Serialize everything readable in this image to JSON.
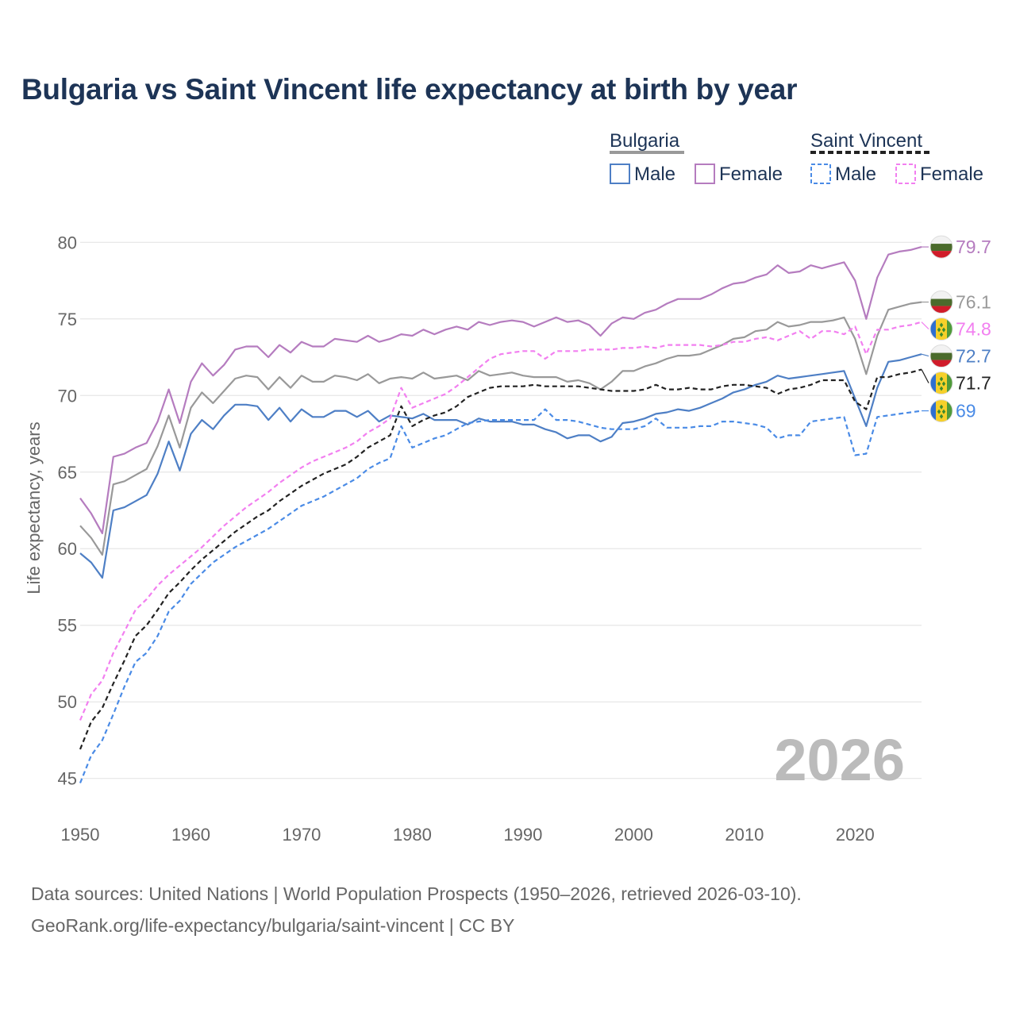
{
  "title": "Bulgaria vs Saint Vincent life expectancy at birth by year",
  "watermark_year": "2026",
  "footer": {
    "line1": "Data sources: United Nations | World Population Prospects (1950–2026, retrieved 2026-03-10).",
    "line2": "GeoRank.org/life-expectancy/bulgaria/saint-vincent | CC BY"
  },
  "legend": {
    "groups": [
      {
        "name": "Bulgaria",
        "items": [
          "Male",
          "Female"
        ]
      },
      {
        "name": "Saint Vincent",
        "items": [
          "Male",
          "Female"
        ]
      }
    ]
  },
  "colors": {
    "bg_male": "#4e7fc5",
    "bg_female": "#b57cbf",
    "bg_total": "#999999",
    "sv_male": "#4a8be6",
    "sv_female": "#f27ff0",
    "sv_total": "#222222",
    "grid": "#e6e6e6",
    "title": "#1d3456"
  },
  "chart_data": {
    "type": "line",
    "title": "Bulgaria vs Saint Vincent life expectancy at birth by year",
    "xlabel": "",
    "ylabel": "Life expectancy, years",
    "xlim": [
      1950,
      2026
    ],
    "ylim": [
      44,
      81
    ],
    "x_ticks": [
      1950,
      1960,
      1970,
      1980,
      1990,
      2000,
      2010,
      2020
    ],
    "y_ticks": [
      45,
      50,
      55,
      60,
      65,
      70,
      75,
      80
    ],
    "grid": true,
    "x": [
      1950,
      1951,
      1952,
      1953,
      1954,
      1955,
      1956,
      1957,
      1958,
      1959,
      1960,
      1961,
      1962,
      1963,
      1964,
      1965,
      1966,
      1967,
      1968,
      1969,
      1970,
      1971,
      1972,
      1973,
      1974,
      1975,
      1976,
      1977,
      1978,
      1979,
      1980,
      1981,
      1982,
      1983,
      1984,
      1985,
      1986,
      1987,
      1988,
      1989,
      1990,
      1991,
      1992,
      1993,
      1994,
      1995,
      1996,
      1997,
      1998,
      1999,
      2000,
      2001,
      2002,
      2003,
      2004,
      2005,
      2006,
      2007,
      2008,
      2009,
      2010,
      2011,
      2012,
      2013,
      2014,
      2015,
      2016,
      2017,
      2018,
      2019,
      2020,
      2021,
      2022,
      2023,
      2024,
      2025,
      2026
    ],
    "series": [
      {
        "key": "bg_female",
        "name": "Bulgaria Female",
        "dashed": false,
        "end_label": "79.7",
        "values": [
          63.3,
          62.3,
          61.0,
          66.0,
          66.2,
          66.6,
          66.9,
          68.3,
          70.4,
          68.2,
          70.9,
          72.1,
          71.3,
          72.0,
          73.0,
          73.2,
          73.2,
          72.5,
          73.3,
          72.8,
          73.5,
          73.2,
          73.2,
          73.7,
          73.6,
          73.5,
          73.9,
          73.5,
          73.7,
          74.0,
          73.9,
          74.3,
          74.0,
          74.3,
          74.5,
          74.3,
          74.8,
          74.6,
          74.8,
          74.9,
          74.8,
          74.5,
          74.8,
          75.1,
          74.8,
          74.9,
          74.6,
          73.9,
          74.7,
          75.1,
          75.0,
          75.4,
          75.6,
          76.0,
          76.3,
          76.3,
          76.3,
          76.6,
          77.0,
          77.3,
          77.4,
          77.7,
          77.9,
          78.5,
          78.0,
          78.1,
          78.5,
          78.3,
          78.5,
          78.7,
          77.5,
          75.0,
          77.7,
          79.2,
          79.4,
          79.5,
          79.7
        ]
      },
      {
        "key": "bg_total",
        "name": "Bulgaria Total",
        "dashed": false,
        "end_label": "76.1",
        "values": [
          61.5,
          60.7,
          59.6,
          64.2,
          64.4,
          64.8,
          65.2,
          66.7,
          68.7,
          66.6,
          69.2,
          70.2,
          69.5,
          70.3,
          71.1,
          71.3,
          71.2,
          70.4,
          71.2,
          70.5,
          71.3,
          70.9,
          70.9,
          71.3,
          71.2,
          71.0,
          71.4,
          70.8,
          71.1,
          71.2,
          71.1,
          71.5,
          71.1,
          71.2,
          71.3,
          71.0,
          71.6,
          71.3,
          71.4,
          71.5,
          71.3,
          71.2,
          71.2,
          71.2,
          70.9,
          71.0,
          70.8,
          70.4,
          70.9,
          71.6,
          71.6,
          71.9,
          72.1,
          72.4,
          72.6,
          72.6,
          72.7,
          73.0,
          73.3,
          73.7,
          73.8,
          74.2,
          74.3,
          74.8,
          74.5,
          74.6,
          74.8,
          74.8,
          74.9,
          75.1,
          73.7,
          71.4,
          73.9,
          75.6,
          75.8,
          76.0,
          76.1
        ]
      },
      {
        "key": "bg_male",
        "name": "Bulgaria Male",
        "dashed": false,
        "end_label": "72.7",
        "values": [
          59.7,
          59.1,
          58.1,
          62.5,
          62.7,
          63.1,
          63.5,
          64.9,
          67.0,
          65.1,
          67.5,
          68.4,
          67.8,
          68.7,
          69.4,
          69.4,
          69.3,
          68.4,
          69.2,
          68.3,
          69.1,
          68.6,
          68.6,
          69.0,
          69.0,
          68.6,
          69.0,
          68.3,
          68.7,
          68.6,
          68.5,
          68.8,
          68.4,
          68.4,
          68.4,
          68.1,
          68.5,
          68.3,
          68.3,
          68.3,
          68.1,
          68.1,
          67.8,
          67.6,
          67.2,
          67.4,
          67.4,
          67.0,
          67.3,
          68.2,
          68.3,
          68.5,
          68.8,
          68.9,
          69.1,
          69.0,
          69.2,
          69.5,
          69.8,
          70.2,
          70.4,
          70.7,
          70.9,
          71.3,
          71.1,
          71.2,
          71.3,
          71.4,
          71.5,
          71.6,
          69.8,
          68.0,
          70.5,
          72.2,
          72.3,
          72.5,
          72.7
        ]
      },
      {
        "key": "sv_female",
        "name": "Saint Vincent Female",
        "dashed": true,
        "end_label": "74.8",
        "values": [
          48.8,
          50.5,
          51.4,
          53.2,
          54.6,
          56.0,
          56.7,
          57.6,
          58.3,
          58.9,
          59.5,
          60.1,
          60.8,
          61.5,
          62.1,
          62.7,
          63.2,
          63.7,
          64.3,
          64.8,
          65.3,
          65.7,
          66.0,
          66.3,
          66.6,
          67.0,
          67.6,
          68.0,
          68.5,
          70.5,
          69.2,
          69.5,
          69.8,
          70.1,
          70.6,
          71.2,
          71.8,
          72.4,
          72.7,
          72.8,
          72.9,
          72.9,
          72.4,
          72.9,
          72.9,
          72.9,
          73.0,
          73.0,
          73.0,
          73.1,
          73.1,
          73.2,
          73.1,
          73.3,
          73.3,
          73.3,
          73.3,
          73.2,
          73.3,
          73.5,
          73.5,
          73.7,
          73.8,
          73.6,
          73.9,
          74.2,
          73.7,
          74.2,
          74.2,
          74.0,
          74.5,
          72.7,
          74.3,
          74.3,
          74.5,
          74.6,
          74.8
        ]
      },
      {
        "key": "sv_total",
        "name": "Saint Vincent Total",
        "dashed": true,
        "end_label": "71.7",
        "values": [
          46.9,
          48.7,
          49.6,
          51.2,
          52.7,
          54.3,
          55.0,
          56.0,
          57.1,
          57.8,
          58.6,
          59.3,
          59.9,
          60.5,
          61.1,
          61.6,
          62.1,
          62.5,
          63.1,
          63.6,
          64.1,
          64.5,
          64.9,
          65.2,
          65.5,
          66.0,
          66.6,
          67.0,
          67.4,
          69.3,
          68.0,
          68.4,
          68.7,
          68.9,
          69.3,
          69.9,
          70.2,
          70.5,
          70.6,
          70.6,
          70.6,
          70.7,
          70.6,
          70.6,
          70.6,
          70.6,
          70.5,
          70.4,
          70.3,
          70.3,
          70.3,
          70.4,
          70.7,
          70.4,
          70.4,
          70.5,
          70.4,
          70.4,
          70.6,
          70.7,
          70.7,
          70.6,
          70.5,
          70.1,
          70.4,
          70.5,
          70.7,
          71.0,
          71.0,
          71.0,
          69.6,
          69.1,
          71.2,
          71.2,
          71.4,
          71.5,
          71.7
        ]
      },
      {
        "key": "sv_male",
        "name": "Saint Vincent Male",
        "dashed": true,
        "end_label": "69",
        "values": [
          44.7,
          46.5,
          47.5,
          49.2,
          51.0,
          52.6,
          53.2,
          54.3,
          55.9,
          56.6,
          57.7,
          58.4,
          59.1,
          59.6,
          60.1,
          60.5,
          60.9,
          61.3,
          61.8,
          62.3,
          62.8,
          63.1,
          63.4,
          63.8,
          64.2,
          64.6,
          65.2,
          65.6,
          65.9,
          68.0,
          66.6,
          66.9,
          67.2,
          67.4,
          67.8,
          68.2,
          68.3,
          68.4,
          68.4,
          68.4,
          68.4,
          68.4,
          69.1,
          68.4,
          68.4,
          68.3,
          68.1,
          67.9,
          67.8,
          67.8,
          67.8,
          68.0,
          68.5,
          67.9,
          67.9,
          67.9,
          68.0,
          68.0,
          68.3,
          68.3,
          68.2,
          68.1,
          67.9,
          67.2,
          67.4,
          67.4,
          68.3,
          68.4,
          68.5,
          68.6,
          66.1,
          66.2,
          68.6,
          68.7,
          68.8,
          68.9,
          69.0
        ]
      }
    ]
  }
}
